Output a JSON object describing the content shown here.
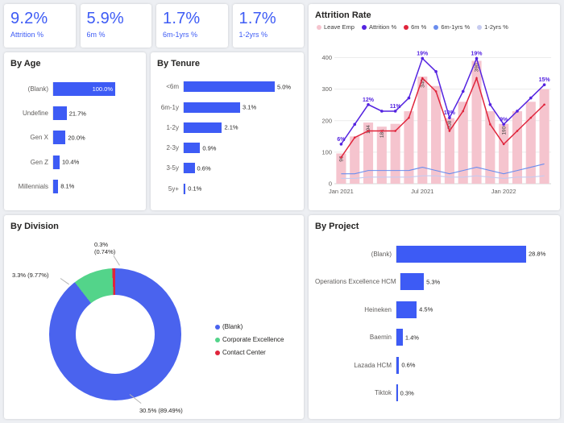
{
  "kpis": [
    {
      "value": "9.2%",
      "label": "Attrition %"
    },
    {
      "value": "5.9%",
      "label": "6m %"
    },
    {
      "value": "1.7%",
      "label": "6m-1yrs %"
    },
    {
      "value": "1.7%",
      "label": "1-2yrs %"
    }
  ],
  "colors": {
    "kpi_text": "#3D5BF5",
    "bar": "#3D5BF5",
    "leave_emp": "#F5C4CE",
    "attrition_pct": "#5423E0",
    "six_m": "#E0243B",
    "six_m_1y": "#6A8DEE",
    "one_2y": "#C6CBF0",
    "donut_blank": "#4A63EE",
    "donut_corporate": "#53D48A",
    "donut_contact": "#E0243B"
  },
  "chart_data": [
    {
      "id": "by_age",
      "type": "bar",
      "orientation": "horizontal",
      "title": "By Age",
      "categories": [
        "(Blank)",
        "Undefine",
        "Gen X",
        "Gen Z",
        "Millennials"
      ],
      "values": [
        100.0,
        21.7,
        20.0,
        10.4,
        8.1
      ],
      "value_labels": [
        "100.0%",
        "21.7%",
        "20.0%",
        "10.4%",
        "8.1%"
      ],
      "inside": [
        true,
        false,
        false,
        false,
        false
      ],
      "xlim": [
        0,
        100
      ]
    },
    {
      "id": "by_tenure",
      "type": "bar",
      "orientation": "horizontal",
      "title": "By Tenure",
      "categories": [
        "<6m",
        "6m-1y",
        "1-2y",
        "2-3y",
        "3-5y",
        "5y+"
      ],
      "values": [
        5.0,
        3.1,
        2.1,
        0.9,
        0.6,
        0.1
      ],
      "value_labels": [
        "5.0%",
        "3.1%",
        "2.1%",
        "0.9%",
        "0.6%",
        "0.1%"
      ],
      "xlim": [
        0,
        5
      ]
    },
    {
      "id": "attrition_rate",
      "type": "combo",
      "title": "Attrition Rate",
      "x": [
        "Jan 2021",
        "Feb 2021",
        "Mar 2021",
        "Apr 2021",
        "May 2021",
        "Jun 2021",
        "Jul 2021",
        "Aug 2021",
        "Sep 2021",
        "Oct 2021",
        "Nov 2021",
        "Dec 2021",
        "Jan 2022",
        "Feb 2022",
        "Mar 2022",
        "Apr 2022"
      ],
      "x_tick_labels": [
        "Jan 2021",
        "Jul 2021",
        "Jan 2022"
      ],
      "x_tick_indices": [
        0,
        6,
        12
      ],
      "y_left_ticks": [
        0,
        100,
        200,
        300,
        400
      ],
      "y_left_max": 450,
      "pct_axis_max": 21.5,
      "grid": true,
      "legend": [
        {
          "label": "Leave Emp",
          "color": "#F5C4CE"
        },
        {
          "label": "Attrition %",
          "color": "#5423E0"
        },
        {
          "label": "6m %",
          "color": "#E0243B"
        },
        {
          "label": "6m-1yrs %",
          "color": "#6A8DEE"
        },
        {
          "label": "1-2yrs %",
          "color": "#C6CBF0"
        }
      ],
      "bars": {
        "name": "Leave Emp",
        "color": "#F5C4CE",
        "values": [
          96,
          150,
          194,
          181,
          190,
          230,
          340,
          310,
          208,
          260,
          390,
          230,
          190,
          230,
          260,
          300
        ],
        "labels": [
          "96",
          null,
          "194",
          "181",
          null,
          null,
          "340",
          null,
          "208",
          null,
          "390",
          null,
          "190",
          null,
          null,
          null
        ]
      },
      "series": [
        {
          "name": "Attrition %",
          "color": "#5423E0",
          "values": [
            6,
            9,
            12,
            11,
            11,
            13,
            19,
            17,
            10,
            14,
            19,
            12,
            9,
            11,
            13,
            15
          ],
          "point_labels": [
            "6%",
            null,
            "12%",
            null,
            "11%",
            null,
            "19%",
            null,
            "10%",
            null,
            "19%",
            null,
            "9%",
            null,
            null,
            "15%"
          ]
        },
        {
          "name": "6m %",
          "color": "#E0243B",
          "values": [
            4,
            7,
            8,
            8,
            8,
            10,
            16,
            14,
            8,
            11,
            16,
            9,
            6,
            8,
            10,
            12
          ]
        },
        {
          "name": "6m-1yrs %",
          "color": "#6A8DEE",
          "values": [
            1.5,
            1.5,
            2,
            2,
            2,
            2,
            2.5,
            2,
            1.5,
            2,
            2.5,
            2,
            1.5,
            2,
            2.5,
            3
          ]
        },
        {
          "name": "1-2yrs %",
          "color": "#C6CBF0",
          "values": [
            0.8,
            0.8,
            1,
            1,
            1,
            1,
            1.2,
            1.2,
            1,
            1,
            1.2,
            1,
            0.8,
            1,
            1,
            1.2
          ]
        }
      ]
    },
    {
      "id": "by_division",
      "type": "pie",
      "title": "By Division",
      "slices": [
        {
          "label": "(Blank)",
          "pct": 89.49,
          "value_label": "30.5% (89.49%)",
          "color": "#4A63EE"
        },
        {
          "label": "Corporate Excellence",
          "pct": 9.77,
          "value_label": "3.3% (9.77%)",
          "color": "#53D48A"
        },
        {
          "label": "Contact Center",
          "pct": 0.74,
          "value_label": "0.3% (0.74%)",
          "color": "#E0243B"
        }
      ],
      "legend_position": "right"
    },
    {
      "id": "by_project",
      "type": "bar",
      "orientation": "horizontal",
      "title": "By Project",
      "categories": [
        "(Blank)",
        "Operations Excellence HCM",
        "Heineken",
        "Baemin",
        "Lazada HCM",
        "Tiktok"
      ],
      "values": [
        28.8,
        5.3,
        4.5,
        1.4,
        0.6,
        0.3
      ],
      "value_labels": [
        "28.8%",
        "5.3%",
        "4.5%",
        "1.4%",
        "0.6%",
        "0.3%"
      ],
      "xlim": [
        0,
        28.8
      ]
    }
  ]
}
